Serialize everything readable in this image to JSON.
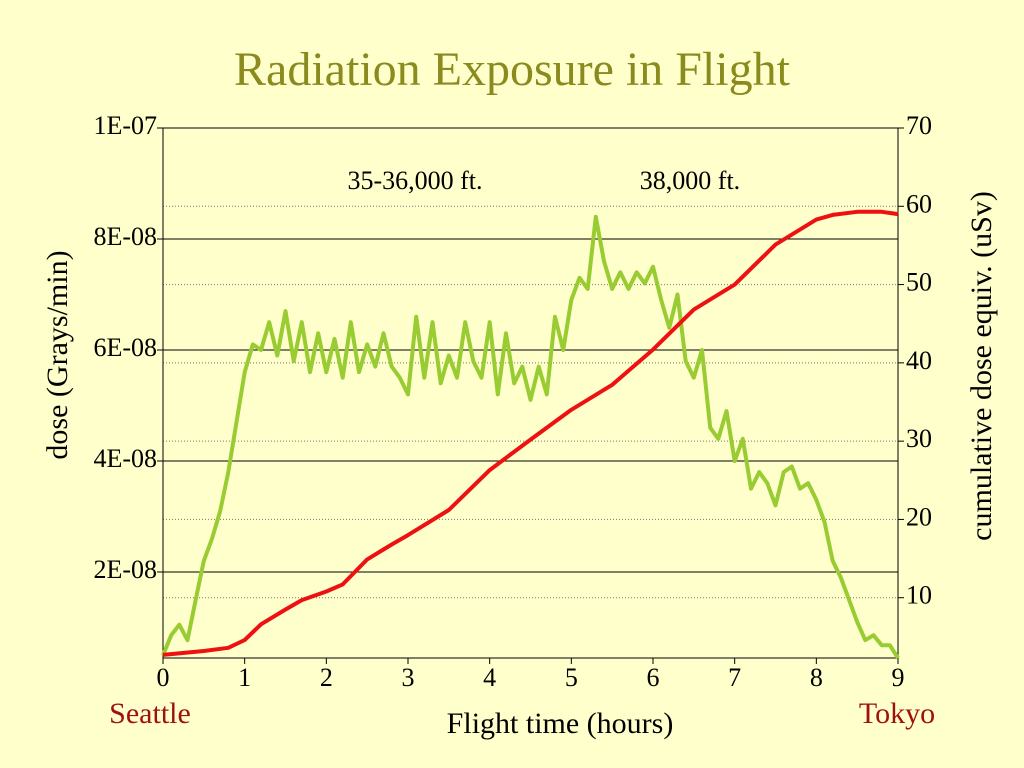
{
  "chart_data": {
    "type": "line",
    "title": "Radiation Exposure in Flight",
    "xlabel": "Flight time  (hours)",
    "ylabel": "dose (Grays/min)",
    "y2label": "cumulative dose equiv.  (uSv)",
    "annotations": [
      "35-36,000 ft.",
      "38,000 ft.",
      "Seattle",
      "Tokyo"
    ],
    "xlim": [
      0,
      9
    ],
    "xticks": [
      0,
      1,
      2,
      3,
      4,
      5,
      6,
      7,
      8,
      9
    ],
    "ylim": [
      4.5e-09,
      1e-07
    ],
    "yticks": [
      {
        "value": 2e-08,
        "label": "2E-08"
      },
      {
        "value": 4e-08,
        "label": "4E-08"
      },
      {
        "value": 6e-08,
        "label": "6E-08"
      },
      {
        "value": 8e-08,
        "label": "8E-08"
      },
      {
        "value": 1e-07,
        "label": "1E-07"
      }
    ],
    "y2lim": [
      2.3,
      70
    ],
    "y2ticks": [
      10,
      20,
      30,
      40,
      50,
      60,
      70
    ],
    "grid": true,
    "series": [
      {
        "color": "#99cc33",
        "axis": "y",
        "x": [
          0,
          0.1,
          0.2,
          0.3,
          0.4,
          0.5,
          0.6,
          0.7,
          0.8,
          0.9,
          1,
          1.1,
          1.2,
          1.3,
          1.4,
          1.5,
          1.6,
          1.7,
          1.8,
          1.9,
          2,
          2.1,
          2.2,
          2.3,
          2.4,
          2.5,
          2.6,
          2.7,
          2.8,
          2.9,
          3,
          3.1,
          3.2,
          3.3,
          3.4,
          3.5,
          3.6,
          3.7,
          3.8,
          3.9,
          4,
          4.1,
          4.2,
          4.3,
          4.4,
          4.5,
          4.6,
          4.7,
          4.8,
          4.9,
          5,
          5.1,
          5.2,
          5.3,
          5.4,
          5.5,
          5.6,
          5.7,
          5.8,
          5.9,
          6,
          6.1,
          6.2,
          6.3,
          6.4,
          6.5,
          6.6,
          6.7,
          6.8,
          6.9,
          7,
          7.1,
          7.2,
          7.3,
          7.4,
          7.5,
          7.6,
          7.7,
          7.8,
          7.9,
          8,
          8.1,
          8.2,
          8.3,
          8.4,
          8.5,
          8.6,
          8.7,
          8.8,
          8.9,
          9
        ],
        "values": [
          5e-09,
          8.6e-09,
          1.05e-08,
          7.7e-09,
          1.5e-08,
          2.2e-08,
          2.6e-08,
          3.1e-08,
          3.8e-08,
          4.7e-08,
          5.6e-08,
          6.1e-08,
          6e-08,
          6.5e-08,
          5.9e-08,
          6.7e-08,
          5.8e-08,
          6.5e-08,
          5.6e-08,
          6.3e-08,
          5.6e-08,
          6.2e-08,
          5.5e-08,
          6.5e-08,
          5.6e-08,
          6.1e-08,
          5.7e-08,
          6.3e-08,
          5.7e-08,
          5.5e-08,
          5.2e-08,
          6.6e-08,
          5.5e-08,
          6.5e-08,
          5.4e-08,
          5.9e-08,
          5.5e-08,
          6.5e-08,
          5.8e-08,
          5.5e-08,
          6.5e-08,
          5.2e-08,
          6.3e-08,
          5.4e-08,
          5.7e-08,
          5.1e-08,
          5.7e-08,
          5.2e-08,
          6.6e-08,
          6e-08,
          6.9e-08,
          7.3e-08,
          7.1e-08,
          8.4e-08,
          7.6e-08,
          7.1e-08,
          7.4e-08,
          7.1e-08,
          7.4e-08,
          7.2e-08,
          7.5e-08,
          6.9e-08,
          6.4e-08,
          7e-08,
          5.8e-08,
          5.5e-08,
          6e-08,
          4.6e-08,
          4.4e-08,
          4.9e-08,
          4e-08,
          4.4e-08,
          3.5e-08,
          3.8e-08,
          3.6e-08,
          3.2e-08,
          3.8e-08,
          3.9e-08,
          3.5e-08,
          3.6e-08,
          3.3e-08,
          2.9e-08,
          2.2e-08,
          1.9e-08,
          1.5e-08,
          1.1e-08,
          7.7e-09,
          8.6e-09,
          6.8e-09,
          6.8e-09,
          4.5e-09
        ]
      },
      {
        "color": "#ee1111",
        "axis": "y2",
        "x": [
          0,
          0.5,
          0.8,
          1,
          1.2,
          1.5,
          1.7,
          2,
          2.2,
          2.5,
          2.8,
          3,
          3.5,
          4,
          4.5,
          5,
          5.5,
          6,
          6.5,
          7,
          7.5,
          8,
          8.2,
          8.5,
          8.8,
          9
        ],
        "values": [
          2.7,
          3.2,
          3.6,
          4.6,
          6.6,
          8.5,
          9.7,
          10.8,
          11.7,
          14.9,
          16.8,
          18.0,
          21.2,
          26.3,
          30.2,
          34.0,
          37.2,
          41.7,
          46.8,
          50.0,
          55.1,
          58.3,
          58.9,
          59.3,
          59.3,
          59.0
        ]
      }
    ]
  }
}
